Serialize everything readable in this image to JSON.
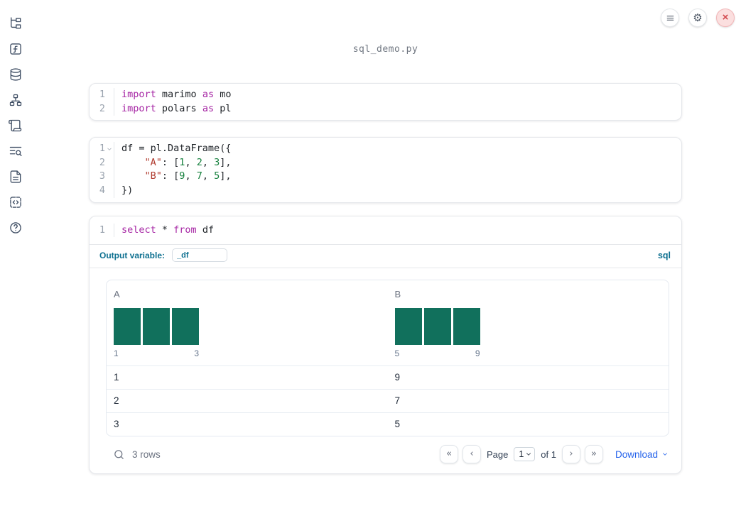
{
  "title": {
    "filename": "sql_demo.py"
  },
  "sidebar": {
    "items": [
      {
        "name": "file-explorer",
        "icon": "file-tree-icon"
      },
      {
        "name": "variables",
        "icon": "function-icon"
      },
      {
        "name": "datasources",
        "icon": "database-icon"
      },
      {
        "name": "dependency-graph",
        "icon": "network-icon"
      },
      {
        "name": "logs",
        "icon": "scroll-icon"
      },
      {
        "name": "outline-search",
        "icon": "text-search-icon"
      },
      {
        "name": "documentation",
        "icon": "document-icon"
      },
      {
        "name": "snippets",
        "icon": "code-block-icon"
      },
      {
        "name": "help",
        "icon": "help-circle-icon"
      }
    ]
  },
  "topbar": {
    "buttons": [
      {
        "name": "notebook-menu",
        "icon": "hamburger-menu-icon"
      },
      {
        "name": "settings",
        "icon": "gear-icon"
      },
      {
        "name": "shutdown",
        "icon": "close-icon"
      }
    ],
    "gear_glyph": "⚙",
    "close_glyph": "×"
  },
  "cells": [
    {
      "name": "imports-cell",
      "lines": [
        {
          "num": "1",
          "fold": false,
          "tokens": [
            {
              "t": "import",
              "c": "kw"
            },
            {
              "t": " marimo ",
              "c": "pl"
            },
            {
              "t": "as",
              "c": "kw"
            },
            {
              "t": " mo",
              "c": "pl"
            }
          ]
        },
        {
          "num": "2",
          "fold": false,
          "tokens": [
            {
              "t": "import",
              "c": "kw"
            },
            {
              "t": " polars ",
              "c": "pl"
            },
            {
              "t": "as",
              "c": "kw"
            },
            {
              "t": " pl",
              "c": "pl"
            }
          ]
        }
      ]
    },
    {
      "name": "dataframe-cell",
      "lines": [
        {
          "num": "1",
          "fold": true,
          "tokens": [
            {
              "t": "df = pl.DataFrame({",
              "c": "pl"
            }
          ]
        },
        {
          "num": "2",
          "fold": false,
          "tokens": [
            {
              "t": "    ",
              "c": "pl"
            },
            {
              "t": "\"A\"",
              "c": "str"
            },
            {
              "t": ": [",
              "c": "pl"
            },
            {
              "t": "1",
              "c": "num"
            },
            {
              "t": ", ",
              "c": "pl"
            },
            {
              "t": "2",
              "c": "num"
            },
            {
              "t": ", ",
              "c": "pl"
            },
            {
              "t": "3",
              "c": "num"
            },
            {
              "t": "],",
              "c": "pl"
            }
          ]
        },
        {
          "num": "3",
          "fold": false,
          "tokens": [
            {
              "t": "    ",
              "c": "pl"
            },
            {
              "t": "\"B\"",
              "c": "str"
            },
            {
              "t": ": [",
              "c": "pl"
            },
            {
              "t": "9",
              "c": "num"
            },
            {
              "t": ", ",
              "c": "pl"
            },
            {
              "t": "7",
              "c": "num"
            },
            {
              "t": ", ",
              "c": "pl"
            },
            {
              "t": "5",
              "c": "num"
            },
            {
              "t": "],",
              "c": "pl"
            }
          ]
        },
        {
          "num": "4",
          "fold": false,
          "tokens": [
            {
              "t": "})",
              "c": "pl"
            }
          ]
        }
      ]
    },
    {
      "name": "sql-cell-code",
      "lines": [
        {
          "num": "1",
          "fold": false,
          "tokens": [
            {
              "t": "select",
              "c": "kw"
            },
            {
              "t": " * ",
              "c": "pl"
            },
            {
              "t": "from",
              "c": "kw"
            },
            {
              "t": " df",
              "c": "pl"
            }
          ]
        }
      ]
    }
  ],
  "sql_cell": {
    "output_variable_label": "Output variable:",
    "output_variable_value": "_df",
    "language_badge": "sql"
  },
  "table": {
    "columns": [
      {
        "name": "A",
        "min": "1",
        "max": "3",
        "histogram_bars": [
          1,
          1,
          1
        ]
      },
      {
        "name": "B",
        "min": "5",
        "max": "9",
        "histogram_bars": [
          1,
          1,
          1
        ]
      }
    ],
    "rows": [
      [
        "1",
        "9"
      ],
      [
        "2",
        "7"
      ],
      [
        "3",
        "5"
      ]
    ],
    "footer": {
      "row_count": "3 rows",
      "page_label": "Page",
      "page_value": "1",
      "of_label": "of 1",
      "download_label": "Download"
    }
  },
  "icons": {
    "first_page": "«",
    "prev_page": "‹",
    "next_page": "›",
    "last_page": "»"
  },
  "colors": {
    "histogram_bar": "#11705c",
    "keyword": "#a626a4",
    "string": "#b03a2e",
    "number": "#15803d",
    "accent_teal": "#0e7090",
    "link_blue": "#2563eb",
    "close_button_bg": "#fbdfdf",
    "close_button_x": "#d2494e"
  }
}
